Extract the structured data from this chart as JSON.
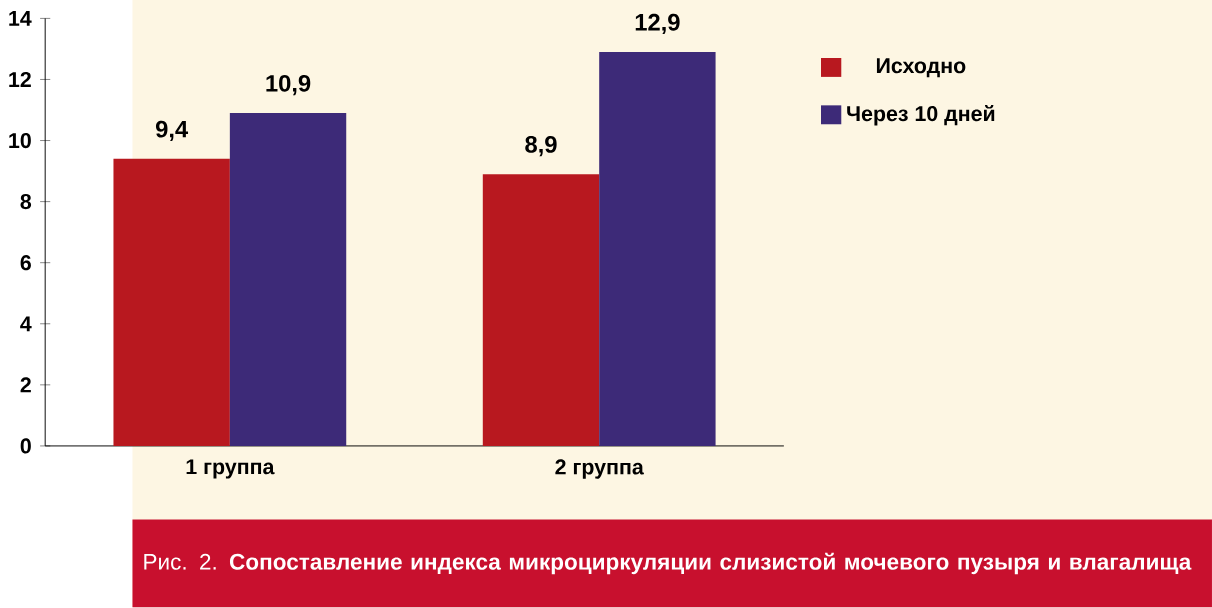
{
  "chart_data": {
    "type": "bar",
    "title": "Рис. 2. **Сопоставление индекса микроциркуляции слизистой мочевого пузыря и влагалища**",
    "categories": [
      "1 группа",
      "2 группа"
    ],
    "series": [
      {
        "name": "Исходно",
        "color": "#b8181f",
        "values": [
          9.4,
          8.9
        ],
        "value_labels": [
          "9,4",
          "8,9"
        ]
      },
      {
        "name": "Через 10 дней",
        "color": "#3d2a78",
        "values": [
          10.9,
          12.9
        ],
        "value_labels": [
          "10,9",
          "12,9"
        ]
      }
    ],
    "ylim": [
      0,
      14
    ],
    "yticks": [
      0,
      2,
      4,
      6,
      8,
      10,
      12,
      14
    ],
    "grid": false,
    "legend": "right"
  }
}
